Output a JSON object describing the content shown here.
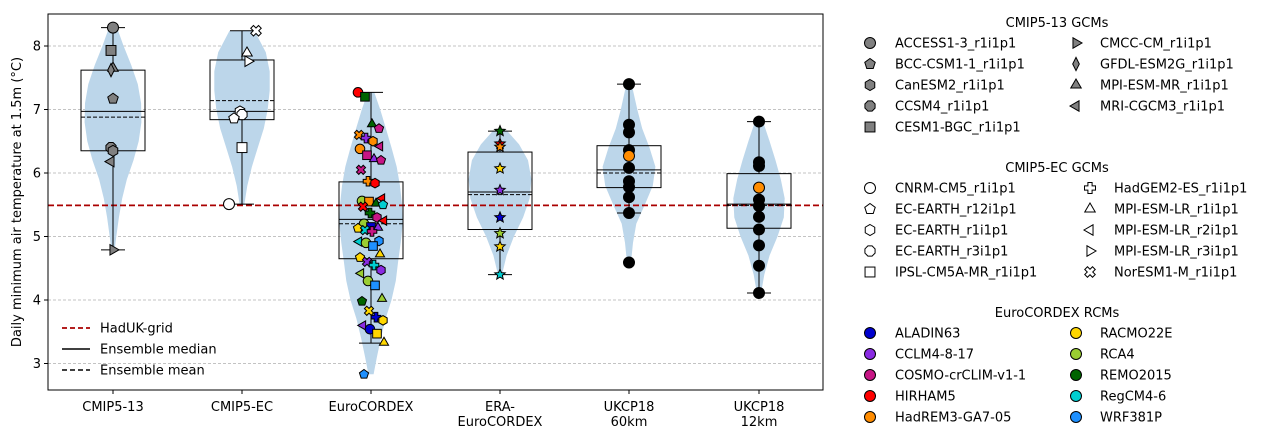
{
  "chart_data": {
    "type": "violin",
    "ylabel": "Daily minimum air temperature at 1.5m (°C)",
    "xlabel": "",
    "ylim": [
      2.55,
      8.55
    ],
    "yticks": [
      3,
      4,
      5,
      6,
      7,
      8
    ],
    "grid": "y-dashed",
    "categories": [
      "CMIP5-13",
      "CMIP5-EC",
      "EuroCORDEX",
      "ERA-\nEuroCORDEX",
      "UKCP18\n60km",
      "UKCP18\n12km"
    ],
    "reference_line": {
      "name": "HadUK-grid",
      "value": 5.49,
      "color": "#aa0000"
    },
    "legend_lines": [
      {
        "name": "HadUK-grid",
        "style": "dashed",
        "color": "#aa0000"
      },
      {
        "name": "Ensemble median",
        "style": "solid",
        "color": "#000000"
      },
      {
        "name": "Ensemble mean",
        "style": "dashed",
        "color": "#000000"
      }
    ],
    "legend_placement": "lower-left",
    "violins": [
      {
        "category": "CMIP5-13",
        "kde": [
          [
            4.79,
            0.05
          ],
          [
            5.0,
            0.1
          ],
          [
            5.3,
            0.18
          ],
          [
            5.6,
            0.28
          ],
          [
            5.9,
            0.42
          ],
          [
            6.2,
            0.62
          ],
          [
            6.5,
            0.78
          ],
          [
            6.8,
            0.86
          ],
          [
            7.1,
            0.85
          ],
          [
            7.4,
            0.75
          ],
          [
            7.7,
            0.55
          ],
          [
            8.0,
            0.32
          ],
          [
            8.29,
            0.12
          ]
        ],
        "box": {
          "q1": 6.35,
          "median": 6.97,
          "q3": 7.62,
          "whisker_low": 4.79,
          "whisker_high": 8.29,
          "mean": 6.88
        },
        "points": [
          {
            "model": "ACCESS1-3_r1i1p1",
            "y": 8.29
          },
          {
            "model": "CESM1-BGC_r1i1p1",
            "y": 7.93
          },
          {
            "model": "MPI-ESM-MR_r1i1p1",
            "y": 7.65
          },
          {
            "model": "GFDL-ESM2G_r1i1p1",
            "y": 7.62
          },
          {
            "model": "BCC-CSM1-1_r1i1p1",
            "y": 7.17
          },
          {
            "model": "CCSM4_r1i1p1",
            "y": 6.4
          },
          {
            "model": "CanESM2_r1i1p1",
            "y": 6.35
          },
          {
            "model": "MRI-CGCM3_r1i1p1",
            "y": 6.18
          },
          {
            "model": "CMCC-CM_r1i1p1",
            "y": 4.79
          }
        ]
      },
      {
        "category": "CMIP5-EC",
        "kde": [
          [
            5.5,
            0.07
          ],
          [
            5.8,
            0.16
          ],
          [
            6.1,
            0.3
          ],
          [
            6.4,
            0.48
          ],
          [
            6.7,
            0.66
          ],
          [
            7.0,
            0.78
          ],
          [
            7.3,
            0.84
          ],
          [
            7.6,
            0.84
          ],
          [
            7.9,
            0.72
          ],
          [
            8.24,
            0.38
          ]
        ],
        "box": {
          "q1": 6.84,
          "median": 6.97,
          "q3": 7.78,
          "whisker_low": 5.51,
          "whisker_high": 8.24,
          "mean": 7.14
        },
        "points": [
          {
            "model": "NorESM1-M_r1i1p1",
            "y": 8.24
          },
          {
            "model": "MPI-ESM-LR_r1i1p1",
            "y": 7.89
          },
          {
            "model": "MPI-ESM-LR_r3i1p1",
            "y": 7.76
          },
          {
            "model": "EC-EARTH_r1i1p1",
            "y": 6.97
          },
          {
            "model": "EC-EARTH_r3i1p1",
            "y": 6.92
          },
          {
            "model": "EC-EARTH_r12i1p1",
            "y": 6.86
          },
          {
            "model": "IPSL-CM5A-MR_r1i1p1",
            "y": 6.4
          },
          {
            "model": "CNRM-CM5_r1i1p1",
            "y": 5.51
          }
        ]
      },
      {
        "category": "EuroCORDEX",
        "kde": [
          [
            2.83,
            0.08
          ],
          [
            3.1,
            0.18
          ],
          [
            3.4,
            0.3
          ],
          [
            3.7,
            0.44
          ],
          [
            4.0,
            0.62
          ],
          [
            4.3,
            0.75
          ],
          [
            4.6,
            0.82
          ],
          [
            4.9,
            0.9
          ],
          [
            5.2,
            0.96
          ],
          [
            5.5,
            0.94
          ],
          [
            5.8,
            0.88
          ],
          [
            6.1,
            0.78
          ],
          [
            6.4,
            0.62
          ],
          [
            6.7,
            0.45
          ],
          [
            7.0,
            0.28
          ],
          [
            7.27,
            0.1
          ]
        ],
        "box": {
          "q1": 4.65,
          "median": 5.27,
          "q3": 5.86,
          "whisker_low": 3.32,
          "whisker_high": 7.27,
          "mean": 5.2
        },
        "points": [
          {
            "rcm": "HIRHAM5",
            "y": 7.27
          },
          {
            "rcm": "REMO2015",
            "y": 7.2
          },
          {
            "rcm": "REMO2015",
            "y": 6.77
          },
          {
            "rcm": "COSMO-crCLIM-v1-1",
            "y": 6.7
          },
          {
            "rcm": "HadREM3-GA7-05",
            "y": 6.6
          },
          {
            "rcm": "CCLM4-8-17",
            "y": 6.55
          },
          {
            "rcm": "HadREM3-GA7-05",
            "y": 6.5
          },
          {
            "rcm": "COSMO-crCLIM-v1-1",
            "y": 6.42
          },
          {
            "rcm": "HadREM3-GA7-05",
            "y": 6.38
          },
          {
            "rcm": "COSMO-crCLIM-v1-1",
            "y": 6.28
          },
          {
            "rcm": "CCLM4-8-17",
            "y": 6.22
          },
          {
            "rcm": "COSMO-crCLIM-v1-1",
            "y": 6.2
          },
          {
            "rcm": "COSMO-crCLIM-v1-1",
            "y": 6.05
          },
          {
            "rcm": "HadREM3-GA7-05",
            "y": 5.87
          },
          {
            "rcm": "HIRHAM5",
            "y": 5.84
          },
          {
            "rcm": "HIRHAM5",
            "y": 5.6
          },
          {
            "rcm": "RCA4",
            "y": 5.56
          },
          {
            "rcm": "HadREM3-GA7-05",
            "y": 5.55
          },
          {
            "rcm": "REMO2015",
            "y": 5.52
          },
          {
            "rcm": "RegCM4-6",
            "y": 5.5
          },
          {
            "rcm": "HIRHAM5",
            "y": 5.47
          },
          {
            "rcm": "REMO2015",
            "y": 5.37
          },
          {
            "rcm": "COSMO-crCLIM-v1-1",
            "y": 5.3
          },
          {
            "rcm": "HIRHAM5",
            "y": 5.25
          },
          {
            "rcm": "RCA4",
            "y": 5.2
          },
          {
            "rcm": "ALADIN63",
            "y": 5.15
          },
          {
            "rcm": "CCLM4-8-17",
            "y": 5.14
          },
          {
            "rcm": "RACMO22E",
            "y": 5.13
          },
          {
            "rcm": "RegCM4-6",
            "y": 5.1
          },
          {
            "rcm": "COSMO-crCLIM-v1-1",
            "y": 5.08
          },
          {
            "rcm": "WRF381P",
            "y": 4.93
          },
          {
            "rcm": "RegCM4-6",
            "y": 4.92
          },
          {
            "rcm": "RCA4",
            "y": 4.9
          },
          {
            "rcm": "WRF381P",
            "y": 4.85
          },
          {
            "rcm": "RACMO22E",
            "y": 4.72
          },
          {
            "rcm": "RACMO22E",
            "y": 4.67
          },
          {
            "rcm": "CCLM4-8-17",
            "y": 4.6
          },
          {
            "rcm": "RegCM4-6",
            "y": 4.55
          },
          {
            "rcm": "CCLM4-8-17",
            "y": 4.47
          },
          {
            "rcm": "RCA4",
            "y": 4.42
          },
          {
            "rcm": "RCA4",
            "y": 4.3
          },
          {
            "rcm": "WRF381P",
            "y": 4.23
          },
          {
            "rcm": "RCA4",
            "y": 4.02
          },
          {
            "rcm": "REMO2015",
            "y": 3.98
          },
          {
            "rcm": "RACMO22E",
            "y": 3.83
          },
          {
            "rcm": "ALADIN63",
            "y": 3.73
          },
          {
            "rcm": "RACMO22E",
            "y": 3.68
          },
          {
            "rcm": "CCLM4-8-17",
            "y": 3.6
          },
          {
            "rcm": "ALADIN63",
            "y": 3.54
          },
          {
            "rcm": "RACMO22E",
            "y": 3.47
          },
          {
            "rcm": "RACMO22E",
            "y": 3.33
          },
          {
            "rcm": "WRF381P",
            "y": 2.83
          }
        ]
      },
      {
        "category": "ERA-\nEuroCORDEX",
        "kde": [
          [
            4.4,
            0.06
          ],
          [
            4.7,
            0.2
          ],
          [
            5.0,
            0.42
          ],
          [
            5.3,
            0.7
          ],
          [
            5.6,
            0.9
          ],
          [
            5.9,
            0.95
          ],
          [
            6.2,
            0.85
          ],
          [
            6.45,
            0.58
          ],
          [
            6.66,
            0.22
          ]
        ],
        "box": {
          "q1": 5.11,
          "median": 5.7,
          "q3": 6.33,
          "whisker_low": 4.4,
          "whisker_high": 6.66,
          "mean": 5.66
        },
        "points": [
          {
            "rcm": "REMO2015",
            "y": 6.66
          },
          {
            "rcm": "HIRHAM5",
            "y": 6.46
          },
          {
            "rcm": "HadREM3-GA7-05",
            "y": 6.41
          },
          {
            "rcm": "RACMO22E",
            "y": 6.07
          },
          {
            "rcm": "CCLM4-8-17",
            "y": 5.73
          },
          {
            "rcm": "ALADIN63",
            "y": 5.3
          },
          {
            "rcm": "RCA4",
            "y": 5.05
          },
          {
            "rcm": "RACMO22E",
            "y": 4.84
          },
          {
            "rcm": "RegCM4-6",
            "y": 4.4
          }
        ]
      },
      {
        "category": "UKCP18\n60km",
        "kde": [
          [
            4.59,
            0.06
          ],
          [
            4.9,
            0.12
          ],
          [
            5.2,
            0.22
          ],
          [
            5.5,
            0.48
          ],
          [
            5.8,
            0.72
          ],
          [
            6.1,
            0.8
          ],
          [
            6.4,
            0.62
          ],
          [
            6.7,
            0.4
          ],
          [
            7.0,
            0.25
          ],
          [
            7.4,
            0.08
          ]
        ],
        "box": {
          "q1": 5.77,
          "median": 6.05,
          "q3": 6.43,
          "whisker_low": 5.37,
          "whisker_high": 7.4,
          "mean": 6.0
        },
        "points": [
          {
            "y": 7.4
          },
          {
            "y": 6.76
          },
          {
            "y": 6.64
          },
          {
            "y": 6.36
          },
          {
            "y": 6.27,
            "highlight": true
          },
          {
            "y": 6.08
          },
          {
            "y": 5.87
          },
          {
            "y": 5.78
          },
          {
            "y": 5.62
          },
          {
            "y": 5.37
          },
          {
            "y": 4.59
          }
        ]
      },
      {
        "category": "UKCP18\n12km",
        "kde": [
          [
            4.1,
            0.06
          ],
          [
            4.4,
            0.16
          ],
          [
            4.7,
            0.32
          ],
          [
            5.0,
            0.56
          ],
          [
            5.3,
            0.75
          ],
          [
            5.6,
            0.78
          ],
          [
            5.9,
            0.66
          ],
          [
            6.2,
            0.5
          ],
          [
            6.5,
            0.32
          ],
          [
            6.81,
            0.12
          ]
        ],
        "box": {
          "q1": 5.13,
          "median": 5.51,
          "q3": 5.99,
          "whisker_low": 4.11,
          "whisker_high": 6.81,
          "mean": 5.49
        },
        "points": [
          {
            "y": 6.81
          },
          {
            "y": 6.17
          },
          {
            "y": 6.11
          },
          {
            "y": 5.77,
            "highlight": true
          },
          {
            "y": 5.58
          },
          {
            "y": 5.48
          },
          {
            "y": 5.31
          },
          {
            "y": 5.11
          },
          {
            "y": 4.86
          },
          {
            "y": 4.54
          },
          {
            "y": 4.11
          }
        ]
      }
    ],
    "legends": {
      "cmip5_13": {
        "title": "CMIP5-13 GCMs",
        "entries": [
          {
            "label": "ACCESS1-3_r1i1p1",
            "marker": "circle"
          },
          {
            "label": "BCC-CSM1-1_r1i1p1",
            "marker": "pentagon"
          },
          {
            "label": "CanESM2_r1i1p1",
            "marker": "hexagon"
          },
          {
            "label": "CCSM4_r1i1p1",
            "marker": "octagon"
          },
          {
            "label": "CESM1-BGC_r1i1p1",
            "marker": "square"
          },
          {
            "label": "CMCC-CM_r1i1p1",
            "marker": "triangle-right"
          },
          {
            "label": "GFDL-ESM2G_r1i1p1",
            "marker": "diamond-thin"
          },
          {
            "label": "MPI-ESM-MR_r1i1p1",
            "marker": "triangle-up"
          },
          {
            "label": "MRI-CGCM3_r1i1p1",
            "marker": "triangle-left"
          }
        ]
      },
      "cmip5_ec": {
        "title": "CMIP5-EC GCMs",
        "entries": [
          {
            "label": "CNRM-CM5_r1i1p1",
            "marker": "circle"
          },
          {
            "label": "EC-EARTH_r12i1p1",
            "marker": "pentagon"
          },
          {
            "label": "EC-EARTH_r1i1p1",
            "marker": "hexagon"
          },
          {
            "label": "EC-EARTH_r3i1p1",
            "marker": "octagon"
          },
          {
            "label": "IPSL-CM5A-MR_r1i1p1",
            "marker": "square"
          },
          {
            "label": "HadGEM2-ES_r1i1p1",
            "marker": "plus"
          },
          {
            "label": "MPI-ESM-LR_r1i1p1",
            "marker": "triangle-up"
          },
          {
            "label": "MPI-ESM-LR_r2i1p1",
            "marker": "triangle-left"
          },
          {
            "label": "MPI-ESM-LR_r3i1p1",
            "marker": "triangle-right"
          },
          {
            "label": "NorESM1-M_r1i1p1",
            "marker": "x"
          }
        ]
      },
      "eurocordex": {
        "title": "EuroCORDEX RCMs",
        "entries": [
          {
            "label": "ALADIN63",
            "color": "#0000cd"
          },
          {
            "label": "CCLM4-8-17",
            "color": "#8a2be2"
          },
          {
            "label": "COSMO-crCLIM-v1-1",
            "color": "#c71585"
          },
          {
            "label": "HIRHAM5",
            "color": "#ff0000"
          },
          {
            "label": "HadREM3-GA7-05",
            "color": "#ff8c00"
          },
          {
            "label": "RACMO22E",
            "color": "#ffd700"
          },
          {
            "label": "RCA4",
            "color": "#9acd32"
          },
          {
            "label": "REMO2015",
            "color": "#006400"
          },
          {
            "label": "RegCM4-6",
            "color": "#00ced1"
          },
          {
            "label": "WRF381P",
            "color": "#1e90ff"
          }
        ]
      }
    },
    "colors": {
      "violin": "#bcd6ea",
      "cmip5_13_marker": "#808080",
      "cmip5_ec_marker": "#ffffff",
      "ukcp_marker": "#000000",
      "ukcp_highlight": "#ff8c00",
      "grid": "#b0b0b0"
    }
  }
}
